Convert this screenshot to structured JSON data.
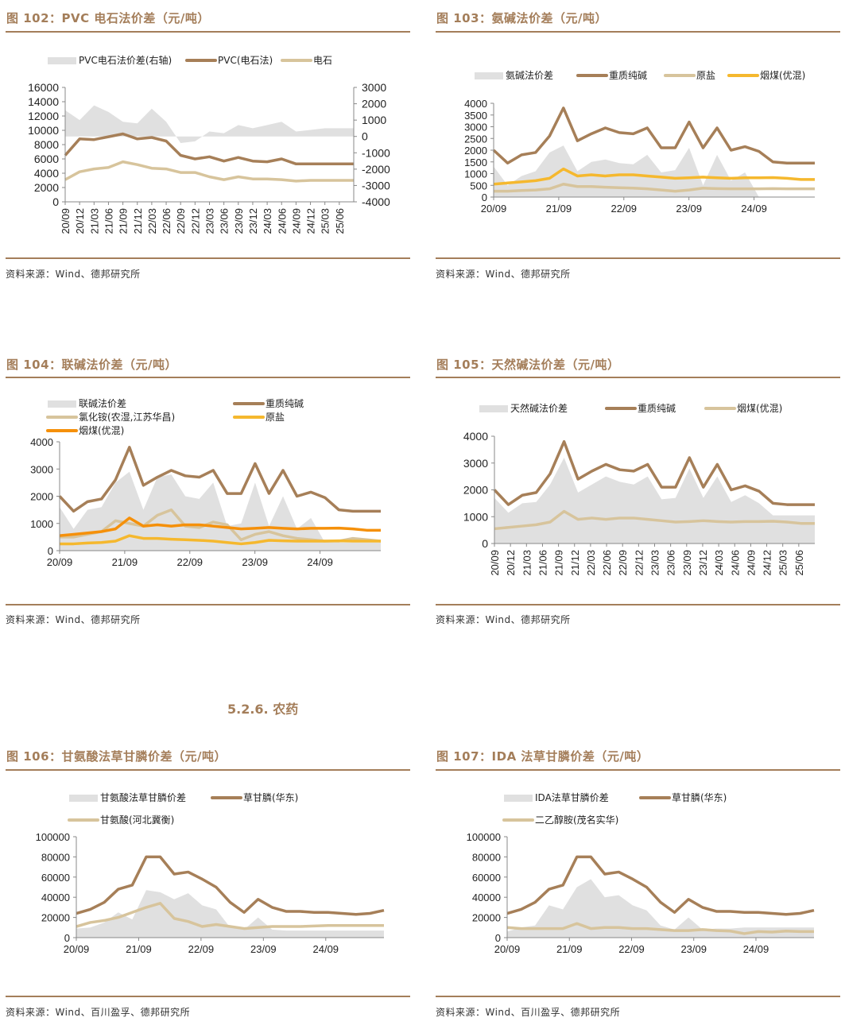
{
  "colors": {
    "accent": "#a47e5a",
    "spread_fill": "#e0e0e0",
    "brown_line": "#a67f58",
    "tan_line": "#d7c49c",
    "yellow_line": "#f5b82e",
    "orange_line": "#f5900a"
  },
  "section": {
    "heading": "5.2.6. 农药"
  },
  "figures": [
    {
      "title": "图 102：PVC 电石法价差（元/吨）",
      "source": "资料来源：Wind、德邦研究所"
    },
    {
      "title": "图 103：氨碱法价差（元/吨）",
      "source": "资料来源：Wind、德邦研究所"
    },
    {
      "title": "图 104：联碱法价差（元/吨）",
      "source": "资料来源：Wind、德邦研究所"
    },
    {
      "title": "图 105：天然碱法价差（元/吨）",
      "source": "资料来源：Wind、德邦研究所"
    },
    {
      "title": "图 106：甘氨酸法草甘膦价差（元/吨）",
      "source": "资料来源：Wind、百川盈孚、德邦研究所"
    },
    {
      "title": "图 107：IDA 法草甘膦价差（元/吨）",
      "source": "资料来源：Wind、百川盈孚、德邦研究所"
    }
  ],
  "chart_data": [
    {
      "id": "fig102",
      "type": "line",
      "title": "PVC 电石法价差（元/吨）",
      "legend": [
        "PVC电石法价差(右轴)",
        "PVC(电石法)",
        "电石"
      ],
      "legend_position": "top",
      "x": [
        "20/09",
        "20/12",
        "21/03",
        "21/06",
        "21/09",
        "21/12",
        "22/03",
        "22/06",
        "22/09",
        "22/12",
        "23/03",
        "23/06",
        "23/09",
        "23/12",
        "24/03",
        "24/06",
        "24/09",
        "24/12",
        "25/03",
        "25/06",
        "25/08"
      ],
      "x_tick_labels": [
        "20/09",
        "20/12",
        "21/03",
        "21/06",
        "21/09",
        "21/12",
        "22/03",
        "22/06",
        "22/09",
        "22/12",
        "23/03",
        "23/06",
        "23/09",
        "23/12",
        "24/03",
        "24/06",
        "24/09",
        "24/12",
        "25/03",
        "25/06"
      ],
      "ylim": [
        0,
        16000
      ],
      "y_ticks": [
        0,
        2000,
        4000,
        6000,
        8000,
        10000,
        12000,
        14000,
        16000
      ],
      "y2lim": [
        -4000,
        3000
      ],
      "y2_ticks": [
        -4000,
        -3000,
        -2000,
        -1000,
        0,
        1000,
        2000,
        3000
      ],
      "series": [
        {
          "name": "PVC电石法价差(右轴)",
          "kind": "area",
          "axis": "right",
          "values": [
            1600,
            1000,
            1900,
            1500,
            900,
            800,
            1700,
            900,
            -400,
            -300,
            300,
            200,
            700,
            500,
            700,
            900,
            300,
            400,
            500,
            500,
            500
          ]
        },
        {
          "name": "PVC(电石法)",
          "kind": "line",
          "axis": "left",
          "color_key": "brown_line",
          "values": [
            6500,
            8800,
            8700,
            9100,
            9500,
            8800,
            9000,
            8500,
            6500,
            6000,
            6300,
            5700,
            6200,
            5700,
            5600,
            6000,
            5300,
            5300,
            5300,
            5300,
            5300
          ]
        },
        {
          "name": "电石",
          "kind": "line",
          "axis": "left",
          "color_key": "tan_line",
          "values": [
            3100,
            4200,
            4600,
            4800,
            5600,
            5200,
            4700,
            4600,
            4100,
            4100,
            3500,
            3100,
            3500,
            3200,
            3200,
            3100,
            2900,
            3000,
            3000,
            3000,
            3000
          ]
        }
      ]
    },
    {
      "id": "fig103",
      "type": "line",
      "title": "氨碱法价差（元/吨）",
      "legend": [
        "氨碱法价差",
        "重质纯碱",
        "原盐",
        "烟煤(优混)"
      ],
      "legend_position": "top",
      "x": [
        "20/09",
        "20/12",
        "21/03",
        "21/06",
        "21/09",
        "21/10",
        "21/12",
        "22/03",
        "22/06",
        "22/09",
        "22/12",
        "23/03",
        "23/06",
        "23/08",
        "23/09",
        "23/11",
        "24/01",
        "24/03",
        "24/06",
        "24/09",
        "24/12",
        "25/03",
        "25/06",
        "25/08"
      ],
      "x_tick_labels": [
        "20/09",
        "21/09",
        "22/09",
        "23/09",
        "24/09"
      ],
      "ylim": [
        0,
        4000
      ],
      "y_ticks": [
        0,
        500,
        1000,
        1500,
        2000,
        2500,
        3000,
        3500,
        4000
      ],
      "series": [
        {
          "name": "氨碱法价差",
          "kind": "area",
          "color_key": "spread_fill",
          "values": [
            1300,
            500,
            900,
            1100,
            1900,
            2200,
            1100,
            1500,
            1600,
            1450,
            1400,
            1800,
            1050,
            1150,
            2100,
            500,
            1800,
            700,
            1050,
            0,
            0,
            0,
            0,
            0
          ]
        },
        {
          "name": "重质纯碱",
          "kind": "line",
          "color_key": "brown_line",
          "values": [
            2000,
            1450,
            1800,
            1900,
            2600,
            3800,
            2400,
            2700,
            2950,
            2750,
            2700,
            2950,
            2100,
            2100,
            3200,
            2100,
            2950,
            2000,
            2150,
            1950,
            1500,
            1450,
            1450,
            1450
          ]
        },
        {
          "name": "原盐",
          "kind": "line",
          "color_key": "tan_line",
          "values": [
            250,
            250,
            280,
            300,
            350,
            550,
            450,
            450,
            420,
            400,
            380,
            350,
            300,
            250,
            300,
            380,
            360,
            350,
            350,
            350,
            360,
            350,
            350,
            350
          ]
        },
        {
          "name": "烟煤(优混)",
          "kind": "line",
          "color_key": "yellow_line",
          "values": [
            550,
            600,
            650,
            700,
            800,
            1200,
            900,
            950,
            900,
            950,
            950,
            900,
            850,
            800,
            820,
            850,
            820,
            800,
            820,
            820,
            830,
            800,
            750,
            750
          ]
        }
      ]
    },
    {
      "id": "fig104",
      "type": "line",
      "title": "联碱法价差（元/吨）",
      "legend": [
        "联碱法价差",
        "重质纯碱",
        "氯化铵(农湿,江苏华昌)",
        "原盐",
        "烟煤(优混)"
      ],
      "legend_position": "top-left",
      "x": [
        "20/09",
        "20/12",
        "21/03",
        "21/06",
        "21/09",
        "21/10",
        "21/12",
        "22/03",
        "22/06",
        "22/09",
        "22/12",
        "23/03",
        "23/06",
        "23/08",
        "23/09",
        "23/11",
        "24/01",
        "24/03",
        "24/06",
        "24/09",
        "24/12",
        "25/03",
        "25/06",
        "25/08"
      ],
      "x_tick_labels": [
        "20/09",
        "21/09",
        "22/09",
        "23/09",
        "24/09"
      ],
      "ylim": [
        0,
        4000
      ],
      "y_ticks": [
        0,
        1000,
        2000,
        3000,
        4000
      ],
      "series": [
        {
          "name": "联碱法价差",
          "kind": "area",
          "color_key": "spread_fill",
          "values": [
            1600,
            800,
            1500,
            1600,
            2500,
            2900,
            1500,
            2700,
            2800,
            2000,
            1900,
            2500,
            900,
            1000,
            2500,
            900,
            2000,
            800,
            1200,
            300,
            300,
            300,
            300,
            300
          ]
        },
        {
          "name": "重质纯碱",
          "kind": "line",
          "color_key": "brown_line",
          "values": [
            2000,
            1450,
            1800,
            1900,
            2600,
            3800,
            2400,
            2700,
            2950,
            2750,
            2700,
            2950,
            2100,
            2100,
            3200,
            2100,
            2950,
            2000,
            2150,
            1950,
            1500,
            1450,
            1450,
            1450
          ]
        },
        {
          "name": "氯化铵(农湿,江苏华昌)",
          "kind": "line",
          "color_key": "tan_line",
          "values": [
            500,
            500,
            600,
            700,
            1100,
            1000,
            900,
            1300,
            1500,
            900,
            850,
            1050,
            950,
            400,
            600,
            700,
            550,
            450,
            400,
            350,
            350,
            450,
            400,
            350
          ]
        },
        {
          "name": "原盐",
          "kind": "line",
          "color_key": "yellow_line",
          "values": [
            250,
            250,
            280,
            300,
            350,
            550,
            450,
            450,
            420,
            400,
            380,
            350,
            300,
            250,
            300,
            380,
            360,
            350,
            350,
            350,
            360,
            350,
            350,
            350
          ]
        },
        {
          "name": "烟煤(优混)",
          "kind": "line",
          "color_key": "orange_line",
          "values": [
            550,
            600,
            650,
            700,
            800,
            1200,
            900,
            950,
            900,
            950,
            950,
            900,
            850,
            800,
            820,
            850,
            820,
            800,
            820,
            820,
            830,
            800,
            750,
            750
          ]
        }
      ]
    },
    {
      "id": "fig105",
      "type": "line",
      "title": "天然碱法价差（元/吨）",
      "legend": [
        "天然碱法价差",
        "重质纯碱",
        "烟煤(优混)"
      ],
      "legend_position": "top",
      "x": [
        "20/09",
        "20/12",
        "21/03",
        "21/06",
        "21/09",
        "21/10",
        "21/12",
        "22/03",
        "22/06",
        "22/09",
        "22/12",
        "23/03",
        "23/06",
        "23/08",
        "23/09",
        "23/11",
        "24/01",
        "24/03",
        "24/06",
        "24/09",
        "24/12",
        "25/03",
        "25/06",
        "25/08"
      ],
      "x_tick_labels": [
        "20/09",
        "20/12",
        "21/03",
        "21/06",
        "21/09",
        "21/12",
        "22/03",
        "22/06",
        "22/09",
        "22/12",
        "23/03",
        "23/06",
        "23/09",
        "23/12",
        "24/03",
        "24/06",
        "24/09",
        "24/12",
        "25/03",
        "25/06"
      ],
      "ylim": [
        0,
        4000
      ],
      "y_ticks": [
        0,
        1000,
        2000,
        3000,
        4000
      ],
      "series": [
        {
          "name": "天然碱法价差",
          "kind": "area",
          "color_key": "spread_fill",
          "values": [
            1700,
            1150,
            1500,
            1550,
            2200,
            3200,
            1900,
            2200,
            2500,
            2300,
            2200,
            2500,
            1650,
            1700,
            2800,
            1700,
            2500,
            1550,
            1800,
            1500,
            1050,
            1050,
            1050,
            1050
          ]
        },
        {
          "name": "重质纯碱",
          "kind": "line",
          "color_key": "brown_line",
          "values": [
            2000,
            1450,
            1800,
            1900,
            2600,
            3800,
            2400,
            2700,
            2950,
            2750,
            2700,
            2950,
            2100,
            2100,
            3200,
            2100,
            2950,
            2000,
            2150,
            1950,
            1500,
            1450,
            1450,
            1450
          ]
        },
        {
          "name": "烟煤(优混)",
          "kind": "line",
          "color_key": "tan_line",
          "values": [
            550,
            600,
            650,
            700,
            800,
            1200,
            900,
            950,
            900,
            950,
            950,
            900,
            850,
            800,
            820,
            850,
            820,
            800,
            820,
            820,
            830,
            800,
            750,
            750
          ]
        }
      ]
    },
    {
      "id": "fig106",
      "type": "line",
      "title": "甘氨酸法草甘膦价差（元/吨）",
      "legend": [
        "甘氨酸法草甘膦价差",
        "草甘膦(华东)",
        "甘氨酸(河北冀衡)"
      ],
      "legend_position": "top",
      "x": [
        "20/09",
        "20/12",
        "21/03",
        "21/06",
        "21/09",
        "21/10",
        "21/12",
        "22/03",
        "22/06",
        "22/09",
        "22/12",
        "23/03",
        "23/06",
        "23/07",
        "23/09",
        "23/12",
        "24/03",
        "24/06",
        "24/09",
        "24/12",
        "25/03",
        "25/06",
        "25/08"
      ],
      "x_tick_labels": [
        "20/09",
        "21/09",
        "22/09",
        "23/09",
        "24/09"
      ],
      "ylim": [
        0,
        100000
      ],
      "y_ticks": [
        0,
        20000,
        40000,
        60000,
        80000,
        100000
      ],
      "series": [
        {
          "name": "甘氨酸法草甘膦价差",
          "kind": "area",
          "color_key": "spread_fill",
          "values": [
            9000,
            10000,
            15000,
            25000,
            18000,
            47000,
            45000,
            38000,
            44000,
            32000,
            28000,
            10000,
            8000,
            20000,
            8000,
            7000,
            7000,
            7000,
            7000,
            7000,
            7000,
            7000,
            7000
          ]
        },
        {
          "name": "草甘膦(华东)",
          "kind": "line",
          "color_key": "brown_line",
          "values": [
            24000,
            28000,
            35000,
            48000,
            52000,
            80000,
            80000,
            63000,
            65000,
            58000,
            50000,
            35000,
            25000,
            38000,
            30000,
            26000,
            26000,
            25000,
            25000,
            24000,
            23000,
            24000,
            27000
          ]
        },
        {
          "name": "甘氨酸(河北冀衡)",
          "kind": "line",
          "color_key": "tan_line",
          "values": [
            11000,
            15000,
            17000,
            20000,
            25000,
            30000,
            34000,
            19000,
            16000,
            11000,
            13000,
            11000,
            9000,
            10000,
            11000,
            11000,
            11000,
            11500,
            12000,
            12000,
            12000,
            12000,
            12000
          ]
        }
      ]
    },
    {
      "id": "fig107",
      "type": "line",
      "title": "IDA 法草甘膦价差（元/吨）",
      "legend": [
        "IDA法草甘膦价差",
        "草甘膦(华东)",
        "二乙醇胺(茂名实华)"
      ],
      "legend_position": "top",
      "x": [
        "20/09",
        "20/12",
        "21/03",
        "21/06",
        "21/09",
        "21/10",
        "21/12",
        "22/03",
        "22/06",
        "22/09",
        "22/12",
        "23/03",
        "23/06",
        "23/07",
        "23/09",
        "23/12",
        "24/03",
        "24/06",
        "24/09",
        "24/12",
        "25/03",
        "25/06",
        "25/08"
      ],
      "x_tick_labels": [
        "20/09",
        "21/09",
        "22/09",
        "23/09",
        "24/09"
      ],
      "ylim": [
        0,
        100000
      ],
      "y_ticks": [
        0,
        20000,
        40000,
        60000,
        80000,
        100000
      ],
      "series": [
        {
          "name": "IDA法草甘膦价差",
          "kind": "area",
          "color_key": "spread_fill",
          "values": [
            6000,
            10000,
            12000,
            32000,
            28000,
            50000,
            58000,
            40000,
            42000,
            32000,
            27000,
            12000,
            8000,
            20000,
            8000,
            9000,
            9000,
            10000,
            10000,
            10000,
            10000,
            10000,
            10000
          ]
        },
        {
          "name": "草甘膦(华东)",
          "kind": "line",
          "color_key": "brown_line",
          "values": [
            24000,
            28000,
            35000,
            48000,
            52000,
            80000,
            80000,
            63000,
            65000,
            58000,
            50000,
            35000,
            25000,
            38000,
            30000,
            26000,
            26000,
            25000,
            25000,
            24000,
            23000,
            24000,
            27000
          ]
        },
        {
          "name": "二乙醇胺(茂名实华)",
          "kind": "line",
          "color_key": "tan_line",
          "values": [
            10000,
            9000,
            9000,
            9000,
            9000,
            14000,
            9000,
            10000,
            10000,
            9000,
            9000,
            8000,
            7000,
            7000,
            8000,
            7000,
            6500,
            4000,
            6000,
            5500,
            6500,
            6000,
            6000
          ]
        }
      ]
    }
  ]
}
